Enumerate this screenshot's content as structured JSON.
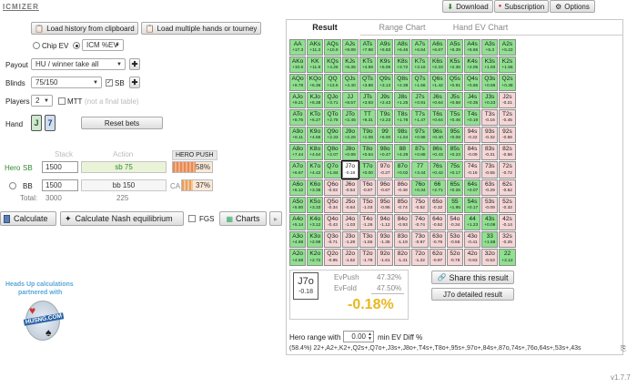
{
  "app": {
    "logo": "ICMIZER",
    "version": "v1.7.7"
  },
  "topbar": {
    "download": "Download",
    "subscription": "Subscription",
    "options": "Options"
  },
  "history": {
    "load_clip": "Load history from clipboard",
    "load_multi": "Load multiple hands or tourney"
  },
  "model": {
    "chip_ev": "Chip EV",
    "icm": "ICM %EV"
  },
  "payout": {
    "label": "Payout",
    "value": "HU / winner take all"
  },
  "blinds": {
    "label": "Blinds",
    "value": "75/150",
    "sb_label": "SB"
  },
  "players": {
    "label": "Players",
    "value": "2",
    "mtt_label": "MTT",
    "mtt_note": "(not a final table)"
  },
  "hand": {
    "label": "Hand",
    "reset": "Reset bets"
  },
  "table": {
    "stack_header": "Stack",
    "action_header": "Action",
    "hero_push": "HERO PUSH",
    "hero_label": "Hero",
    "sb": "SB",
    "sb_stack": "1500",
    "sb_action": "sb 75",
    "push_pct": "58%",
    "bb": "BB",
    "bb_stack": "1500",
    "bb_action": "bb 150",
    "ca": "CA",
    "ca_pct": "37%",
    "total_label": "Total:",
    "total_stack": "3000",
    "total_action": "225"
  },
  "actions": {
    "calculate": "Calculate",
    "nash": "Calculate Nash equilibrium",
    "fgs": "FGS",
    "charts": "Charts"
  },
  "promo": {
    "line1": "Heads Up calculations",
    "line2": "partnered with",
    "brand": "HUSNG.COM"
  },
  "tabs": [
    "Result",
    "Range Chart",
    "Hand EV Chart"
  ],
  "result": {
    "hand": "J7o",
    "hand_ev": "-0.18",
    "evpush_label": "EvPush",
    "evpush": "47.32%",
    "evfold_label": "EvFold",
    "evfold": "47.50%",
    "diff": "-0.18%",
    "share": "Share this result",
    "detailed": "J7o detailed result"
  },
  "range": {
    "label_pre": "Hero range with",
    "value": "0.00",
    "label_post": "min EV Diff %",
    "summary": "(58.4%) 22+,A2+,K2+,Q2s+,Q7o+,J3s+,J8o+,T4s+,T8o+,95s+,97o+,84s+,87o,74s+,76o,64s+,53s+,43s"
  },
  "grid": {
    "ranks": [
      "A",
      "K",
      "Q",
      "J",
      "T",
      "9",
      "8",
      "7",
      "6",
      "5",
      "4",
      "3",
      "2"
    ],
    "ev": [
      [
        "+17.3",
        "+11.3",
        "+10.9",
        "+9.89",
        "+7.98",
        "+6.83",
        "+6.46",
        "+6.64",
        "+6.67",
        "+6.39",
        "+5.65",
        "+5.3",
        "+5.22"
      ],
      [
        "+10.6",
        "+11.8",
        "+4.26",
        "+5.36",
        "+4.59",
        "+5.05",
        "+3.72",
        "+3.16",
        "+2.33",
        "+2.36",
        "+2.05",
        "+1.93",
        "+1.56"
      ],
      [
        "+9.78",
        "+6.36",
        "+13.6",
        "+4.40",
        "+3.88",
        "+3.13",
        "+2.38",
        "+1.56",
        "+1.42",
        "+0.91",
        "+0.65",
        "+0.59",
        "+0.38"
      ],
      [
        "+9.21",
        "+6.38",
        "+3.71",
        "+8.57",
        "+3.93",
        "+2.43",
        "+1.25",
        "+0.91",
        "+0.64",
        "+0.58",
        "+0.35",
        "+0.23",
        "-0.21"
      ],
      [
        "+8.76",
        "+6.27",
        "+2.78",
        "+2.45",
        "+9.31",
        "+2.23",
        "+1.78",
        "+1.47",
        "+0.64",
        "+0.46",
        "+0.19",
        "-0.16",
        "-0.45"
      ],
      [
        "+8.11",
        "+4.55",
        "+2.33",
        "+2.26",
        "+1.08",
        "+6.00",
        "+1.54",
        "+0.98",
        "+0.40",
        "+0.08",
        "-0.22",
        "-0.32",
        "-0.56"
      ],
      [
        "+7.44",
        "+4.64",
        "+2.07",
        "+0.99",
        "+0.64",
        "+0.47",
        "+4.29",
        "+0.88",
        "+0.43",
        "+0.23",
        "-0.09",
        "-0.31",
        "-0.56"
      ],
      [
        "+6.67",
        "+4.42",
        "+1.84",
        "-0.18",
        "+0.00",
        "-0.27",
        "+0.02",
        "+3.44",
        "+0.42",
        "+0.17",
        "-0.16",
        "-0.55",
        "-0.72"
      ],
      [
        "+6.12",
        "+3.38",
        "-0.03",
        "-0.54",
        "-0.87",
        "-0.67",
        "-0.48",
        "+0.34",
        "+2.71",
        "+0.26",
        "+0.07",
        "-0.29",
        "-0.52"
      ],
      [
        "+5.80",
        "+3.33",
        "-0.34",
        "-0.84",
        "-1.03",
        "-0.95",
        "-0.74",
        "-0.52",
        "-0.32",
        "+1.95",
        "+0.17",
        "-0.09",
        "-0.32"
      ],
      [
        "+5.14",
        "+3.12",
        "-0.43",
        "-1.03",
        "-1.26",
        "-1.12",
        "-0.93",
        "-0.74",
        "-0.52",
        "-0.34",
        "+1.23",
        "+0.09",
        "-0.14"
      ],
      [
        "+4.88",
        "+2.98",
        "-0.71",
        "-1.29",
        "-1.55",
        "-1.35",
        "-1.19",
        "-0.97",
        "-0.76",
        "-0.55",
        "-0.41",
        "+1.58",
        "-0.25"
      ],
      [
        "+4.68",
        "+2.72",
        "-0.95",
        "-1.52",
        "-1.78",
        "-1.61",
        "-1.41",
        "-1.22",
        "-0.97",
        "-0.78",
        "-0.63",
        "-0.53",
        "+2.12"
      ]
    ]
  }
}
